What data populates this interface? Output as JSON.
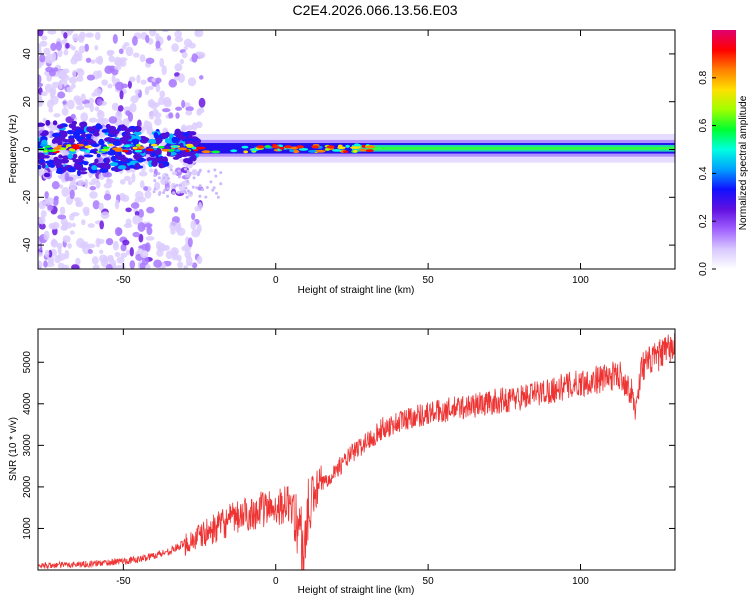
{
  "title": "C2E4.2026.066.13.56.E03",
  "chart_data": [
    {
      "type": "heatmap",
      "xlabel": "Height of straight line (km)",
      "ylabel": "Frequency (Hz)",
      "xlim": [
        -78,
        131
      ],
      "ylim": [
        -50,
        50
      ],
      "xticks": [
        -50,
        0,
        50,
        100
      ],
      "yticks": [
        -40,
        -20,
        0,
        20,
        40
      ],
      "colorbar": {
        "label": "Normalized spectral amplitude",
        "range": [
          0,
          1
        ],
        "ticks": [
          "0.0",
          "0.2",
          "0.4",
          "0.6",
          "0.8"
        ],
        "colors": [
          "#ffffff",
          "#d8c8ff",
          "#a060ff",
          "#6010e0",
          "#1010ff",
          "#00a0ff",
          "#00ffe0",
          "#00ff30",
          "#a0ff00",
          "#ffe000",
          "#ff8000",
          "#ff0000",
          "#e00070"
        ]
      },
      "band": {
        "center_hz": 0.5,
        "x_range": [
          -78,
          131
        ],
        "description_values": {
          "scatter_region_x": [
            -78,
            -30
          ],
          "dense_band_x": [
            -30,
            131
          ]
        }
      }
    },
    {
      "type": "line",
      "color": "#ee3333",
      "xlabel": "Height of straight line (km)",
      "ylabel": "SNR (10 * v/v)",
      "xlim": [
        -78,
        131
      ],
      "ylim": [
        0,
        5800
      ],
      "xticks": [
        -50,
        0,
        50,
        100
      ],
      "yticks": [
        1000,
        2000,
        3000,
        4000,
        5000
      ],
      "trend": {
        "x": [
          -78,
          -60,
          -45,
          -35,
          -25,
          -15,
          -5,
          5,
          8,
          9,
          10,
          12,
          15,
          25,
          35,
          45,
          60,
          80,
          100,
          113,
          117,
          118,
          120,
          131
        ],
        "y": [
          100,
          150,
          250,
          450,
          800,
          1200,
          1450,
          1600,
          1000,
          200,
          1100,
          1750,
          2050,
          2800,
          3400,
          3700,
          3900,
          4150,
          4500,
          4700,
          4250,
          3800,
          4900,
          5400
        ]
      }
    }
  ]
}
